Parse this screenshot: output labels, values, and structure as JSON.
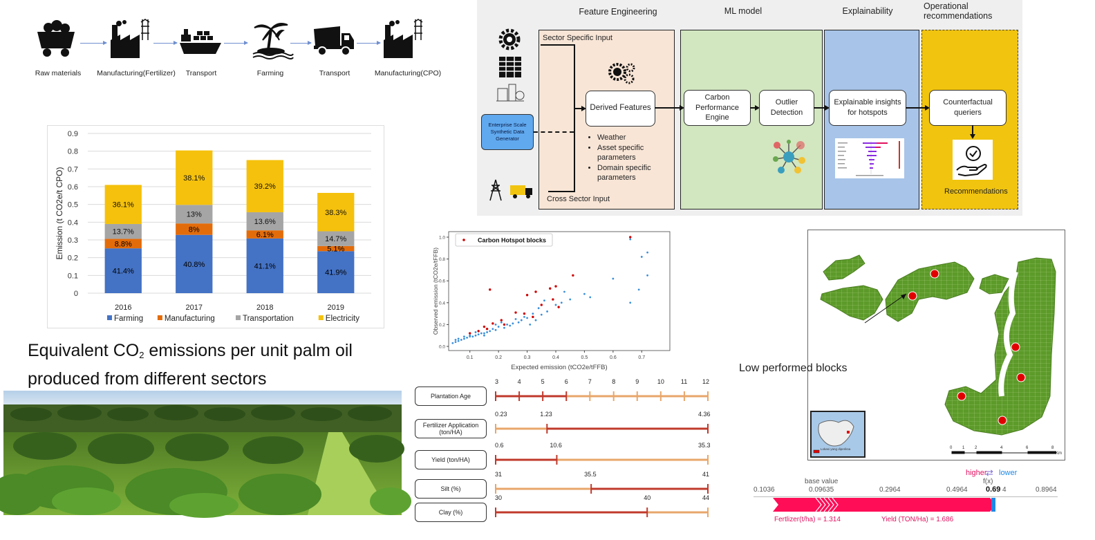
{
  "supply_chain": {
    "steps": [
      {
        "label": "Raw materials",
        "icon": "mine-cart-icon"
      },
      {
        "label": "Manufacturing(Fertilizer)",
        "icon": "factory-icon"
      },
      {
        "label": "Transport",
        "icon": "ship-icon"
      },
      {
        "label": "Farming",
        "icon": "palm-tree-icon"
      },
      {
        "label": "Transport",
        "icon": "truck-icon"
      },
      {
        "label": "Manufacturing(CPO)",
        "icon": "factory-icon"
      }
    ]
  },
  "pipeline": {
    "headers": {
      "feature_engineering": "Feature Engineering",
      "ml_model": "ML model",
      "explainability": "Explainability",
      "operational": "Operational recommendations"
    },
    "sector_specific_input": "Sector Specific Input",
    "cross_sector_input": "Cross Sector Input",
    "synthetic_generator": "Enterprise Scale Synthetic Data Generator",
    "derived_features": "Derived Features",
    "feature_list": [
      "Weather",
      "Asset specific parameters",
      "Domain specific parameters"
    ],
    "carbon_engine": "Carbon Performance Engine",
    "outlier": "Outlier Detection",
    "explainable": "Explainable insights for hotspots",
    "counterfactual": "Counterfactual queriers",
    "recommendations": "Recommendations",
    "colors": {
      "fe": "#f8e5d6",
      "ml": "#d2e6c0",
      "ex": "#a8c4e8",
      "op": "#f1c40f",
      "gen": "#60a9ef"
    }
  },
  "caption": {
    "line1_pre": "Equivalent CO",
    "line1_sub": "2",
    "line1_post": " emissions per unit palm oil",
    "line2": "produced from different sectors"
  },
  "chart_data": [
    {
      "type": "bar",
      "stacked": true,
      "ylabel": "Emission (t CO2e/t CPO)",
      "ylim": [
        0,
        0.9
      ],
      "yticks": [
        0,
        0.1,
        0.2,
        0.3,
        0.4,
        0.5,
        0.6,
        0.7,
        0.8,
        0.9
      ],
      "categories": [
        "2016",
        "2017",
        "2018",
        "2019"
      ],
      "totals": [
        0.61,
        0.805,
        0.75,
        0.565
      ],
      "series": [
        {
          "name": "Farming",
          "color": "#4472c4",
          "labels": [
            "41.4%",
            "40.8%",
            "41.1%",
            "41.9%"
          ],
          "share": [
            0.414,
            0.408,
            0.411,
            0.419
          ]
        },
        {
          "name": "Manufacturing",
          "color": "#e36c0a",
          "labels": [
            "8.8%",
            "8%",
            "6.1%",
            "5.1%"
          ],
          "share": [
            0.088,
            0.08,
            0.061,
            0.051
          ]
        },
        {
          "name": "Transportation",
          "color": "#a5a5a5",
          "labels": [
            "13.7%",
            "13%",
            "13.6%",
            "14.7%"
          ],
          "share": [
            0.137,
            0.13,
            0.136,
            0.147
          ]
        },
        {
          "name": "Electricity",
          "color": "#f5c10c",
          "labels": [
            "36.1%",
            "38.1%",
            "39.2%",
            "38.3%"
          ],
          "share": [
            0.361,
            0.381,
            0.392,
            0.383
          ]
        }
      ],
      "legend": "bottom",
      "grid": true
    },
    {
      "type": "scatter",
      "xlabel": "Expected emission (tCO2e/tFFB)",
      "ylabel": "Observed emission (tCO2e/tFFB)",
      "xlim": [
        0.0,
        0.75
      ],
      "ylim": [
        0.0,
        1.0
      ],
      "xticks": [
        "0.1",
        "0.2",
        "0.3",
        "0.4",
        "0.5",
        "0.6",
        "0.7"
      ],
      "yticks": [
        "0.0",
        "0.2",
        "0.4",
        "0.6",
        "0.8",
        "1.0"
      ],
      "legend": "Carbon Hotspot blocks",
      "hotspots": [
        [
          0.66,
          1.0
        ],
        [
          0.46,
          0.65
        ],
        [
          0.17,
          0.52
        ],
        [
          0.4,
          0.55
        ],
        [
          0.38,
          0.53
        ],
        [
          0.33,
          0.5
        ],
        [
          0.3,
          0.47
        ],
        [
          0.39,
          0.43
        ],
        [
          0.35,
          0.38
        ],
        [
          0.41,
          0.36
        ],
        [
          0.29,
          0.3
        ],
        [
          0.26,
          0.31
        ],
        [
          0.21,
          0.24
        ],
        [
          0.18,
          0.21
        ],
        [
          0.15,
          0.18
        ],
        [
          0.13,
          0.14
        ],
        [
          0.1,
          0.12
        ],
        [
          0.16,
          0.16
        ],
        [
          0.22,
          0.2
        ],
        [
          0.32,
          0.27
        ]
      ],
      "normal": [
        [
          0.66,
          0.98
        ],
        [
          0.72,
          0.86
        ],
        [
          0.7,
          0.82
        ],
        [
          0.72,
          0.65
        ],
        [
          0.69,
          0.52
        ],
        [
          0.66,
          0.4
        ],
        [
          0.6,
          0.62
        ],
        [
          0.52,
          0.45
        ],
        [
          0.5,
          0.48
        ],
        [
          0.43,
          0.5
        ],
        [
          0.45,
          0.43
        ],
        [
          0.36,
          0.42
        ],
        [
          0.34,
          0.35
        ],
        [
          0.32,
          0.3
        ],
        [
          0.3,
          0.26
        ],
        [
          0.28,
          0.24
        ],
        [
          0.27,
          0.22
        ],
        [
          0.25,
          0.21
        ],
        [
          0.24,
          0.19
        ],
        [
          0.23,
          0.2
        ],
        [
          0.22,
          0.17
        ],
        [
          0.2,
          0.18
        ],
        [
          0.19,
          0.15
        ],
        [
          0.18,
          0.16
        ],
        [
          0.17,
          0.14
        ],
        [
          0.16,
          0.13
        ],
        [
          0.15,
          0.12
        ],
        [
          0.14,
          0.12
        ],
        [
          0.13,
          0.11
        ],
        [
          0.12,
          0.1
        ],
        [
          0.11,
          0.09
        ],
        [
          0.1,
          0.09
        ],
        [
          0.09,
          0.08
        ],
        [
          0.08,
          0.07
        ],
        [
          0.07,
          0.06
        ],
        [
          0.06,
          0.05
        ],
        [
          0.05,
          0.04
        ],
        [
          0.04,
          0.03
        ],
        [
          0.33,
          0.24
        ],
        [
          0.31,
          0.2
        ],
        [
          0.29,
          0.27
        ],
        [
          0.26,
          0.25
        ],
        [
          0.21,
          0.22
        ],
        [
          0.19,
          0.2
        ],
        [
          0.37,
          0.32
        ],
        [
          0.42,
          0.4
        ],
        [
          0.4,
          0.38
        ],
        [
          0.35,
          0.29
        ],
        [
          0.15,
          0.1
        ],
        [
          0.12,
          0.13
        ],
        [
          0.1,
          0.1
        ],
        [
          0.08,
          0.09
        ],
        [
          0.06,
          0.07
        ],
        [
          0.05,
          0.06
        ]
      ]
    }
  ],
  "params": [
    {
      "label": "Plantation Age",
      "ticks": [
        "3",
        "4",
        "5",
        "6",
        "7",
        "8",
        "9",
        "10",
        "11",
        "12"
      ],
      "mark_frac": [
        0,
        0.111,
        0.222,
        0.333,
        0.444,
        0.556,
        0.667,
        0.778,
        0.889,
        1.0
      ],
      "red_until": 0.333
    },
    {
      "label": "Fertilizer Application (ton/HA)",
      "ticks": [
        "0.23",
        "1.23",
        "4.36"
      ],
      "mark_frac": [
        0,
        0.242,
        1.0
      ],
      "red_from": 0.242
    },
    {
      "label": "Yield (ton/HA)",
      "ticks": [
        "0.6",
        "10.6",
        "35.3"
      ],
      "mark_frac": [
        0,
        0.288,
        1.0
      ],
      "red_until": 0.288
    },
    {
      "label": "Silt (%)",
      "ticks": [
        "31",
        "35.5",
        "41"
      ],
      "mark_frac": [
        0,
        0.45,
        1.0
      ],
      "red_from": 0.45
    },
    {
      "label": "Clay (%)",
      "ticks": [
        "30",
        "40",
        "44"
      ],
      "mark_frac": [
        0,
        0.714,
        1.0
      ],
      "red_until": 0.714
    }
  ],
  "map": {
    "annotation": "Low performed blocks",
    "scale_ticks": [
      "0",
      "1",
      "2",
      "4",
      "6",
      "8"
    ],
    "scale_unit": "Km",
    "inset_legend": "Lokasi yang diperiksa"
  },
  "shap": {
    "higher": "higher",
    "lower": "lower",
    "fx_label": "f(x)",
    "base_label": "base value",
    "axis": [
      "0.1036",
      "0.09635",
      "0.2964",
      "0.4964",
      "0.69",
      "4",
      "0.8964"
    ],
    "fx_value": "0.69",
    "features": [
      "Fertlizer(t/ha) = 1.314",
      "Yield (TON/Ha) = 1.686"
    ]
  }
}
